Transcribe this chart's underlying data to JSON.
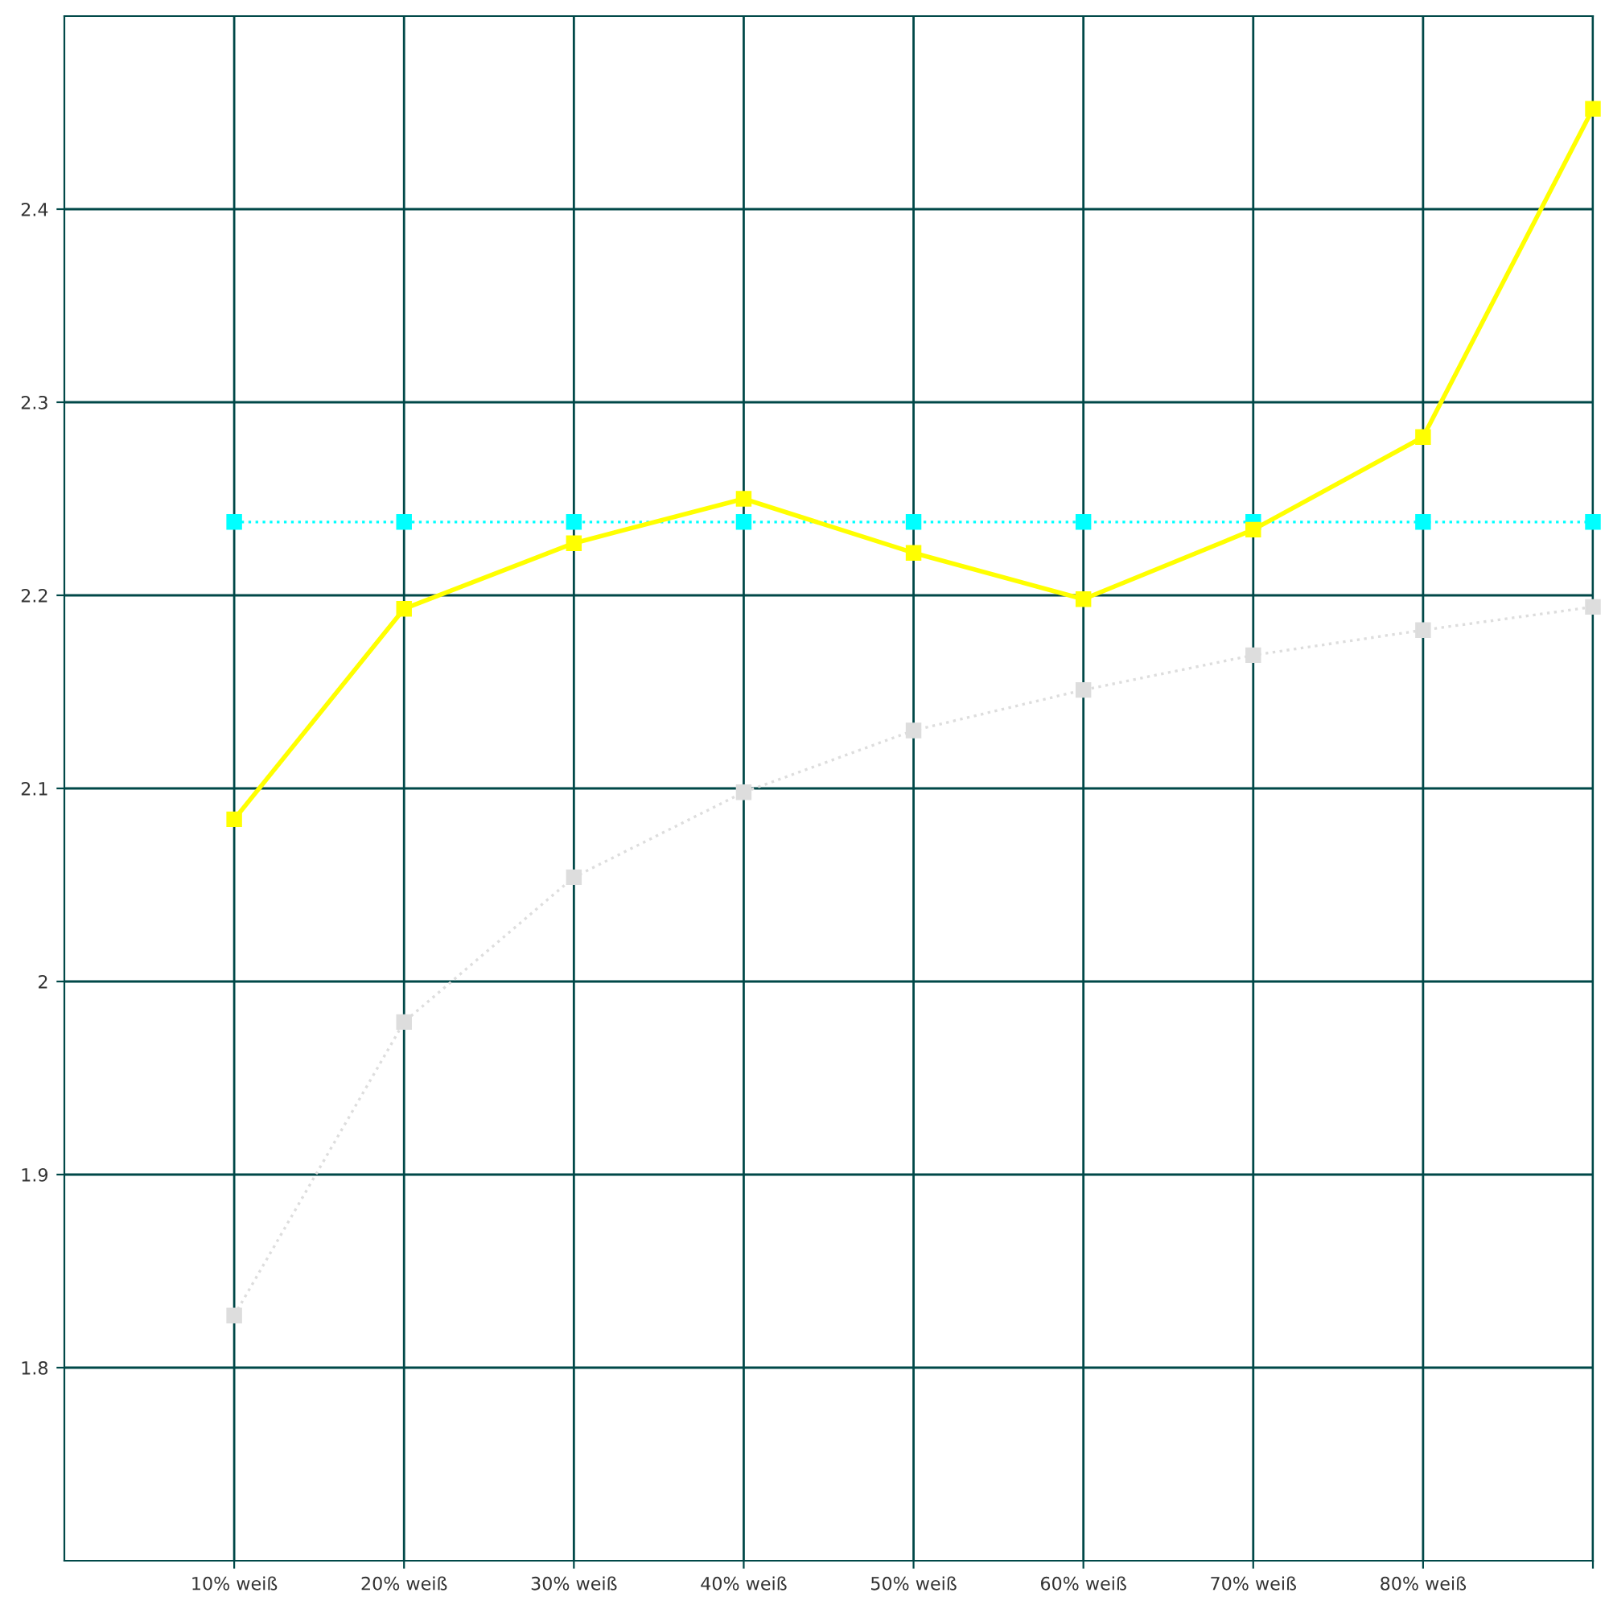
{
  "chart_data": {
    "type": "line",
    "x": [
      10,
      20,
      30,
      40,
      50,
      60,
      70,
      80,
      90
    ],
    "series": [
      {
        "color": "#00ffff",
        "line_style": "dotted",
        "values": [
          2.238,
          2.238,
          2.238,
          2.238,
          2.238,
          2.238,
          2.238,
          2.238,
          2.238
        ]
      },
      {
        "color": "#dddddd",
        "line_style": "dotted",
        "values": [
          1.827,
          1.979,
          2.054,
          2.098,
          2.13,
          2.151,
          2.169,
          2.182,
          2.194
        ]
      },
      {
        "color": "#ffff00",
        "line_style": "solid",
        "values": [
          2.084,
          2.193,
          2.227,
          2.25,
          2.222,
          2.198,
          2.234,
          2.282,
          2.452
        ]
      }
    ],
    "xlim": [
      0,
      90
    ],
    "xticks": [
      {
        "value": 10,
        "label": "10% weiß"
      },
      {
        "value": 20,
        "label": "20% weiß"
      },
      {
        "value": 30,
        "label": "30% weiß"
      },
      {
        "value": 40,
        "label": "40% weiß"
      },
      {
        "value": 50,
        "label": "50% weiß"
      },
      {
        "value": 60,
        "label": "60% weiß"
      },
      {
        "value": 70,
        "label": "70% weiß"
      },
      {
        "value": 80,
        "label": "80% weiß"
      },
      {
        "value": 90,
        "label": null
      }
    ],
    "ylim": [
      1.7,
      2.5
    ],
    "yticks": [
      1.8,
      1.9,
      {
        "value": 2.0,
        "label": "2"
      },
      2.1,
      2.2,
      2.3,
      2.4
    ],
    "grid": true,
    "marker": "square"
  }
}
